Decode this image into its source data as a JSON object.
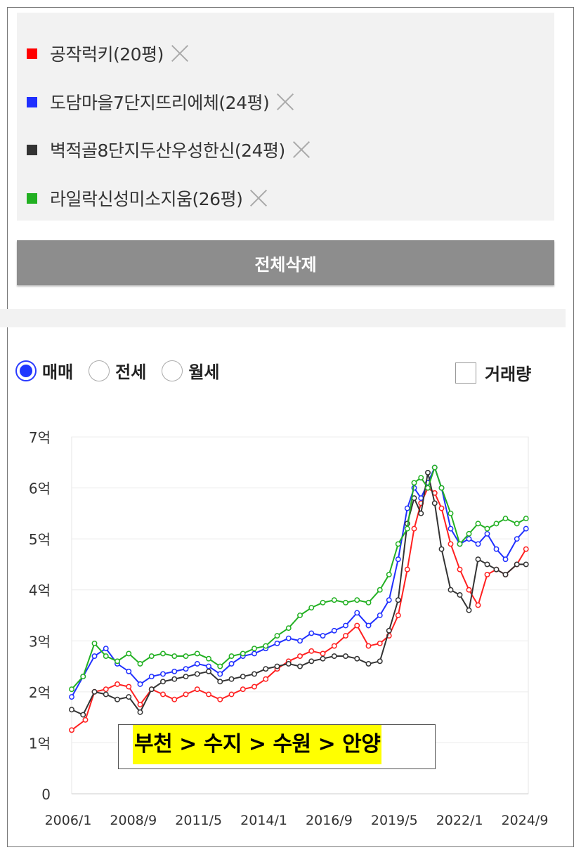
{
  "compare_items": [
    {
      "label": "공작럭키(20평)",
      "color": "#ff0000"
    },
    {
      "label": "도담마을7단지뜨리에체(24평)",
      "color": "#1f2fff"
    },
    {
      "label": "벽적골8단지두산우성한신(24평)",
      "color": "#333333"
    },
    {
      "label": "라일락신성미소지움(26평)",
      "color": "#22b022"
    }
  ],
  "delete_all_label": "전체삭제",
  "trade_types": [
    {
      "label": "매매",
      "selected": true
    },
    {
      "label": "전세",
      "selected": false
    },
    {
      "label": "월세",
      "selected": false
    }
  ],
  "volume_label": "거래량",
  "volume_checked": false,
  "annotation": "부천 > 수지 > 수원 > 안양",
  "chart_data": {
    "type": "line",
    "unit": "억",
    "ylim": [
      0,
      7
    ],
    "yticks": [
      "0",
      "1억",
      "2억",
      "3억",
      "4억",
      "5억",
      "6억",
      "7억"
    ],
    "xlim": [
      2006.0,
      2026.0
    ],
    "xticks": [
      "2006/1",
      "2008/9",
      "2011/5",
      "2014/1",
      "2016/9",
      "2019/5",
      "2022/1",
      "2024/9"
    ],
    "grid": true,
    "series": [
      {
        "name": "공작럭키(20평)",
        "color": "#ff2020",
        "x": [
          2006.0,
          2006.6,
          2007.0,
          2007.5,
          2008.0,
          2008.5,
          2009.0,
          2009.5,
          2010.0,
          2010.5,
          2011.0,
          2011.5,
          2012.0,
          2012.5,
          2013.0,
          2013.5,
          2014.0,
          2014.5,
          2015.0,
          2015.5,
          2016.0,
          2016.5,
          2017.0,
          2017.5,
          2018.0,
          2018.5,
          2019.0,
          2019.5,
          2019.9,
          2020.3,
          2020.7,
          2021.0,
          2021.3,
          2021.6,
          2021.9,
          2022.2,
          2022.6,
          2023.0,
          2023.4,
          2023.8,
          2024.2,
          2024.6,
          2025.0,
          2025.5,
          2025.9
        ],
        "y": [
          1.25,
          1.45,
          2.0,
          2.05,
          2.15,
          2.1,
          1.75,
          2.05,
          1.95,
          1.85,
          1.95,
          2.05,
          1.95,
          1.85,
          1.95,
          2.05,
          2.1,
          2.25,
          2.45,
          2.6,
          2.7,
          2.8,
          2.75,
          2.9,
          3.1,
          3.3,
          2.9,
          2.95,
          3.1,
          3.5,
          4.4,
          5.2,
          5.7,
          6.0,
          5.9,
          5.6,
          4.9,
          4.4,
          4.0,
          3.7,
          4.3,
          4.4,
          4.3,
          4.5,
          4.8
        ]
      },
      {
        "name": "도담마을7단지뜨리에체(24평)",
        "color": "#2030ff",
        "x": [
          2006.0,
          2006.5,
          2007.0,
          2007.5,
          2008.0,
          2008.5,
          2009.0,
          2009.5,
          2010.0,
          2010.5,
          2011.0,
          2011.5,
          2012.0,
          2012.5,
          2013.0,
          2013.5,
          2014.0,
          2014.5,
          2015.0,
          2015.5,
          2016.0,
          2016.5,
          2017.0,
          2017.5,
          2018.0,
          2018.5,
          2019.0,
          2019.5,
          2019.9,
          2020.3,
          2020.7,
          2021.0,
          2021.3,
          2021.6,
          2021.9,
          2022.2,
          2022.6,
          2023.0,
          2023.4,
          2023.8,
          2024.2,
          2024.6,
          2025.0,
          2025.5,
          2025.9
        ],
        "y": [
          1.9,
          2.3,
          2.7,
          2.85,
          2.55,
          2.4,
          2.15,
          2.3,
          2.35,
          2.4,
          2.45,
          2.55,
          2.5,
          2.35,
          2.55,
          2.7,
          2.75,
          2.85,
          2.95,
          3.05,
          3.0,
          3.15,
          3.1,
          3.2,
          3.3,
          3.55,
          3.3,
          3.5,
          3.8,
          4.6,
          5.6,
          6.0,
          5.8,
          6.1,
          6.4,
          6.0,
          5.2,
          4.9,
          5.0,
          4.9,
          5.1,
          4.8,
          4.6,
          5.0,
          5.2
        ]
      },
      {
        "name": "벽적골8단지두산우성한신(24평)",
        "color": "#333333",
        "x": [
          2006.0,
          2006.5,
          2007.0,
          2007.5,
          2008.0,
          2008.5,
          2009.0,
          2009.5,
          2010.0,
          2010.5,
          2011.0,
          2011.5,
          2012.0,
          2012.5,
          2013.0,
          2013.5,
          2014.0,
          2014.5,
          2015.0,
          2015.5,
          2016.0,
          2016.5,
          2017.0,
          2017.5,
          2018.0,
          2018.5,
          2019.0,
          2019.5,
          2019.9,
          2020.3,
          2020.7,
          2021.0,
          2021.3,
          2021.6,
          2021.9,
          2022.2,
          2022.6,
          2023.0,
          2023.4,
          2023.8,
          2024.2,
          2024.6,
          2025.0,
          2025.5,
          2025.9
        ],
        "y": [
          1.65,
          1.55,
          2.0,
          1.95,
          1.85,
          1.9,
          1.6,
          2.05,
          2.2,
          2.25,
          2.3,
          2.35,
          2.4,
          2.2,
          2.25,
          2.3,
          2.35,
          2.45,
          2.5,
          2.55,
          2.5,
          2.6,
          2.65,
          2.7,
          2.7,
          2.65,
          2.55,
          2.6,
          3.2,
          3.8,
          5.3,
          5.8,
          5.5,
          6.3,
          5.7,
          4.8,
          4.0,
          3.9,
          3.6,
          4.6,
          4.5,
          4.4,
          4.3,
          4.5,
          4.5
        ]
      },
      {
        "name": "라일락신성미소지움(26평)",
        "color": "#22b022",
        "x": [
          2006.0,
          2006.5,
          2007.0,
          2007.5,
          2008.0,
          2008.5,
          2009.0,
          2009.5,
          2010.0,
          2010.5,
          2011.0,
          2011.5,
          2012.0,
          2012.5,
          2013.0,
          2013.5,
          2014.0,
          2014.5,
          2015.0,
          2015.5,
          2016.0,
          2016.5,
          2017.0,
          2017.5,
          2018.0,
          2018.5,
          2019.0,
          2019.5,
          2019.9,
          2020.3,
          2020.7,
          2021.0,
          2021.3,
          2021.6,
          2021.9,
          2022.2,
          2022.6,
          2023.0,
          2023.4,
          2023.8,
          2024.2,
          2024.6,
          2025.0,
          2025.5,
          2025.9
        ],
        "y": [
          2.05,
          2.3,
          2.95,
          2.7,
          2.6,
          2.75,
          2.55,
          2.7,
          2.75,
          2.7,
          2.7,
          2.75,
          2.65,
          2.5,
          2.7,
          2.75,
          2.85,
          2.9,
          3.1,
          3.25,
          3.5,
          3.65,
          3.75,
          3.8,
          3.75,
          3.8,
          3.75,
          4.0,
          4.3,
          4.9,
          5.2,
          6.1,
          6.2,
          6.0,
          6.4,
          6.0,
          5.5,
          4.9,
          5.1,
          5.3,
          5.2,
          5.3,
          5.4,
          5.3,
          5.4
        ]
      }
    ]
  }
}
